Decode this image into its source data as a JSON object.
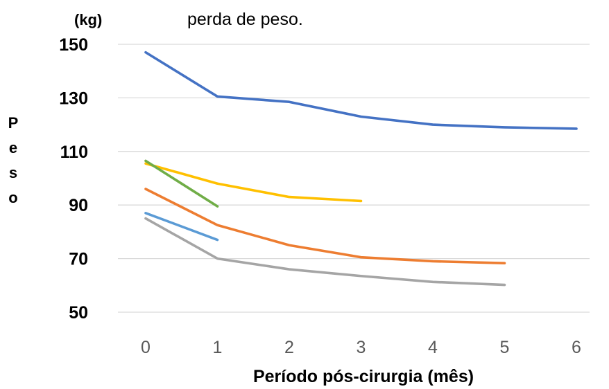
{
  "chart_data": {
    "type": "line",
    "title": "perda de peso.",
    "y_unit": "(kg)",
    "ylabel_letters": [
      "P",
      "e",
      "s",
      "o"
    ],
    "xlabel": "Período pós-cirurgia (mês)",
    "x_ticks": [
      "0",
      "1",
      "2",
      "3",
      "4",
      "5",
      "6"
    ],
    "y_ticks": [
      "150",
      "130",
      "110",
      "90",
      "70",
      "50"
    ],
    "ylim": [
      50,
      150
    ],
    "xlim": [
      0,
      6
    ],
    "grid": true,
    "series": [
      {
        "color": "#4472C4",
        "x": [
          0,
          1,
          2,
          3,
          4,
          5,
          6
        ],
        "values": [
          147,
          130.5,
          128.5,
          123,
          120,
          119,
          118.5
        ]
      },
      {
        "color": "#FFC000",
        "x": [
          0,
          1,
          2,
          3
        ],
        "values": [
          105.5,
          98,
          93,
          91.5
        ]
      },
      {
        "color": "#70AD47",
        "x": [
          0,
          1
        ],
        "values": [
          106.5,
          89.5
        ]
      },
      {
        "color": "#ED7D31",
        "x": [
          0,
          1,
          2,
          3,
          4,
          5
        ],
        "values": [
          96,
          82.5,
          75,
          70.5,
          69,
          68.3
        ]
      },
      {
        "color": "#5B9BD5",
        "x": [
          0,
          1
        ],
        "values": [
          87,
          77
        ]
      },
      {
        "color": "#A5A5A5",
        "x": [
          0,
          1,
          2,
          3,
          4,
          5
        ],
        "values": [
          85,
          70,
          66,
          63.5,
          61.3,
          60.2
        ]
      }
    ]
  }
}
